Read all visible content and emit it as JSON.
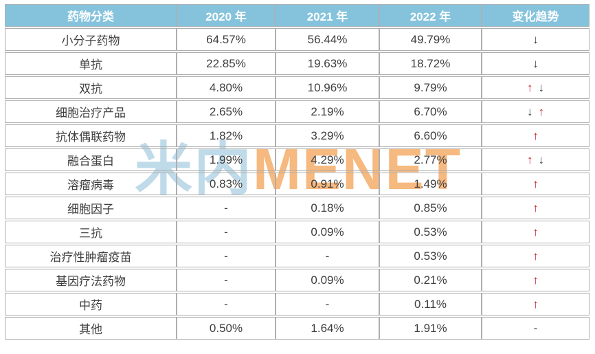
{
  "colors": {
    "header_bg": "#85c3dc",
    "header_text": "#ffffff",
    "cell_border": "#aeaeae",
    "body_text": "#3e3e3e",
    "arrow_up": "#c2182f",
    "arrow_down": "#3d3d3d",
    "watermark_cn": "#bfdae9",
    "watermark_en": "#f6b97f"
  },
  "glyphs": {
    "up_arrow": "↑",
    "down_arrow": "↓",
    "dash": "-"
  },
  "watermark": {
    "cn": "米内",
    "en": "MENET"
  },
  "table": {
    "headers": [
      "药物分类",
      "2020 年",
      "2021 年",
      "2022 年",
      "变化趋势"
    ],
    "rows": [
      {
        "category": "小分子药物",
        "values": [
          "64.57%",
          "56.44%",
          "49.79%"
        ],
        "trend": [
          "down"
        ]
      },
      {
        "category": "单抗",
        "values": [
          "22.85%",
          "19.63%",
          "18.72%"
        ],
        "trend": [
          "down"
        ]
      },
      {
        "category": "双抗",
        "values": [
          "4.80%",
          "10.96%",
          "9.79%"
        ],
        "trend": [
          "up",
          "down"
        ]
      },
      {
        "category": "细胞治疗产品",
        "values": [
          "2.65%",
          "2.19%",
          "6.70%"
        ],
        "trend": [
          "down",
          "up"
        ]
      },
      {
        "category": "抗体偶联药物",
        "values": [
          "1.82%",
          "3.29%",
          "6.60%"
        ],
        "trend": [
          "up"
        ]
      },
      {
        "category": "融合蛋白",
        "values": [
          "1.99%",
          "4.29%",
          "2.77%"
        ],
        "trend": [
          "up",
          "down"
        ]
      },
      {
        "category": "溶瘤病毒",
        "values": [
          "0.83%",
          "0.91%",
          "1.49%"
        ],
        "trend": [
          "up"
        ]
      },
      {
        "category": "细胞因子",
        "values": [
          "-",
          "0.18%",
          "0.85%"
        ],
        "trend": [
          "up"
        ]
      },
      {
        "category": "三抗",
        "values": [
          "-",
          "0.09%",
          "0.53%"
        ],
        "trend": [
          "up"
        ]
      },
      {
        "category": "治疗性肿瘤疫苗",
        "values": [
          "-",
          "-",
          "0.53%"
        ],
        "trend": [
          "up"
        ]
      },
      {
        "category": "基因疗法药物",
        "values": [
          "-",
          "0.09%",
          "0.21%"
        ],
        "trend": [
          "up"
        ]
      },
      {
        "category": "中药",
        "values": [
          "-",
          "-",
          "0.11%"
        ],
        "trend": [
          "up"
        ]
      },
      {
        "category": "其他",
        "values": [
          "0.50%",
          "1.64%",
          "1.91%"
        ],
        "trend": [
          "dash"
        ]
      }
    ]
  },
  "chart_data": {
    "type": "table",
    "title": "",
    "columns": [
      "药物分类",
      "2020 年",
      "2021 年",
      "2022 年",
      "变化趋势"
    ],
    "rows": [
      [
        "小分子药物",
        "64.57%",
        "56.44%",
        "49.79%",
        "↓"
      ],
      [
        "单抗",
        "22.85%",
        "19.63%",
        "18.72%",
        "↓"
      ],
      [
        "双抗",
        "4.80%",
        "10.96%",
        "9.79%",
        "↑↓"
      ],
      [
        "细胞治疗产品",
        "2.65%",
        "2.19%",
        "6.70%",
        "↓↑"
      ],
      [
        "抗体偶联药物",
        "1.82%",
        "3.29%",
        "6.60%",
        "↑"
      ],
      [
        "融合蛋白",
        "1.99%",
        "4.29%",
        "2.77%",
        "↑↓"
      ],
      [
        "溶瘤病毒",
        "0.83%",
        "0.91%",
        "1.49%",
        "↑"
      ],
      [
        "细胞因子",
        "-",
        "0.18%",
        "0.85%",
        "↑"
      ],
      [
        "三抗",
        "-",
        "0.09%",
        "0.53%",
        "↑"
      ],
      [
        "治疗性肿瘤疫苗",
        "-",
        "-",
        "0.53%",
        "↑"
      ],
      [
        "基因疗法药物",
        "-",
        "0.09%",
        "0.21%",
        "↑"
      ],
      [
        "中药",
        "-",
        "-",
        "0.11%",
        "↑"
      ],
      [
        "其他",
        "0.50%",
        "1.64%",
        "1.91%",
        "-"
      ]
    ]
  }
}
